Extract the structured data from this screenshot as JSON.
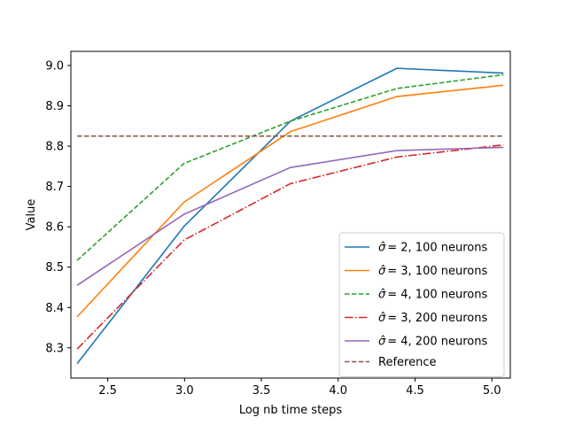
{
  "chart_data": {
    "type": "line",
    "xlabel": "Log nb time  steps",
    "ylabel": "Value",
    "xlim": [
      2.26,
      5.12
    ],
    "ylim": [
      8.225,
      9.035
    ],
    "xticks": [
      2.5,
      3.0,
      3.5,
      4.0,
      4.5,
      5.0
    ],
    "xtick_labels": [
      "2.5",
      "3.0",
      "3.5",
      "4.0",
      "4.5",
      "5.0"
    ],
    "yticks": [
      8.3,
      8.4,
      8.5,
      8.6,
      8.7,
      8.8,
      8.9,
      9.0
    ],
    "ytick_labels": [
      "8.3",
      "8.4",
      "8.5",
      "8.6",
      "8.7",
      "8.8",
      "8.9",
      "9.0"
    ],
    "grid": false,
    "legend_position": "lower-right",
    "x": [
      2.301,
      2.996,
      3.689,
      4.382,
      5.075
    ],
    "series": [
      {
        "name_symbol": "σ̂",
        "name_rest": "=  2, 100 neurons",
        "color": "#1f77b4",
        "dash": "solid",
        "values": [
          8.261,
          8.601,
          8.862,
          8.993,
          8.981
        ]
      },
      {
        "name_symbol": "σ̂",
        "name_rest": "=  3, 100 neurons",
        "color": "#ff7f0e",
        "dash": "solid",
        "values": [
          8.377,
          8.661,
          8.836,
          8.923,
          8.951
        ]
      },
      {
        "name_symbol": "σ̂",
        "name_rest": "=  4, 100 neurons",
        "color": "#2ca02c",
        "dash": "dashed",
        "values": [
          8.517,
          8.757,
          8.862,
          8.943,
          8.977
        ]
      },
      {
        "name_symbol": "σ̂",
        "name_rest": "=  3, 200 neurons",
        "color": "#d62728",
        "dash": "dashdot",
        "values": [
          8.297,
          8.567,
          8.707,
          8.773,
          8.803
        ]
      },
      {
        "name_symbol": "σ̂",
        "name_rest": "=  4, 200 neurons",
        "color": "#9467bd",
        "dash": "solid",
        "values": [
          8.455,
          8.631,
          8.747,
          8.789,
          8.797
        ]
      },
      {
        "name_symbol": "",
        "name_rest": "Reference",
        "color": "#8c564b",
        "dash": "dashed",
        "values": [
          8.825,
          8.825,
          8.825,
          8.825,
          8.825
        ]
      }
    ]
  }
}
